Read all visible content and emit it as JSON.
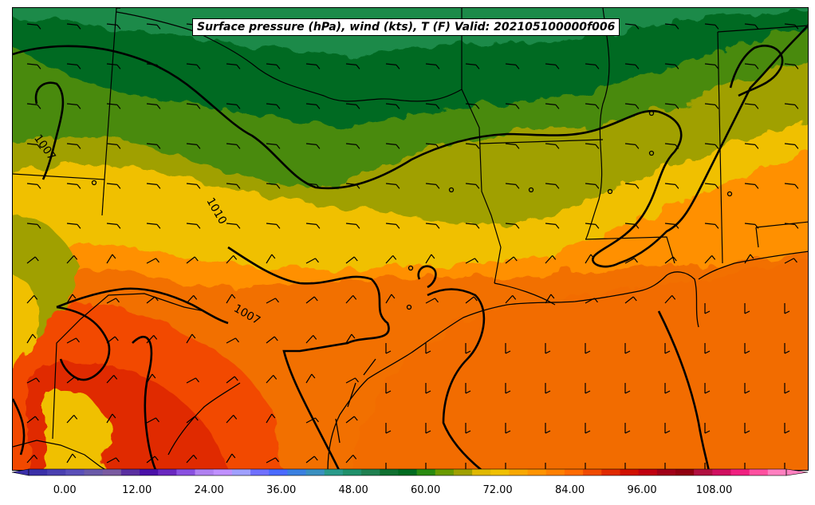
{
  "title": "Surface pressure (hPa), wind (kts), T (F) Valid: 202105100000f006",
  "isobar_labels": [
    "1007",
    "1010",
    "1007"
  ],
  "colorbar": {
    "ticks": [
      "0.00",
      "12.00",
      "24.00",
      "36.00",
      "48.00",
      "60.00",
      "72.00",
      "84.00",
      "96.00",
      "108.00"
    ],
    "min": -6,
    "max": 120,
    "extend": "both",
    "colors": [
      "#3a2fa8",
      "#4a3fb0",
      "#5a4fb8",
      "#6a5aa8",
      "#7a5aa0",
      "#5a2fa0",
      "#4a10a8",
      "#6a28c0",
      "#8a50e0",
      "#b080f0",
      "#c090ff",
      "#a0a0ff",
      "#7070ff",
      "#4a6aff",
      "#3a80e0",
      "#3a90c0",
      "#2a9a8a",
      "#20906a",
      "#208050",
      "#107030",
      "#006a20",
      "#2a8a10",
      "#6a9a00",
      "#a0a000",
      "#e0b800",
      "#f0c000",
      "#f8a800",
      "#ff9400",
      "#ff8000",
      "#ff6a00",
      "#f04a00",
      "#e02a00",
      "#d01000",
      "#c00010",
      "#a00018",
      "#900010",
      "#b01040",
      "#d01060",
      "#f02080",
      "#ff50a0",
      "#ff80c0"
    ]
  }
}
